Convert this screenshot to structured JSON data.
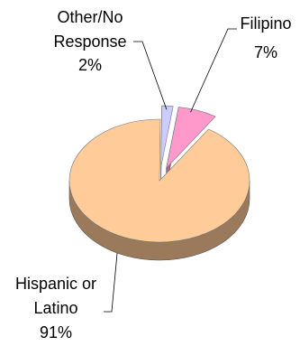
{
  "chart_data": {
    "type": "pie",
    "title": "",
    "slices": [
      {
        "label": "Hispanic or Latino",
        "value": 91,
        "percent_label": "91%",
        "color": "#ffcc99",
        "side_color": "#9b7a5c",
        "exploded": false
      },
      {
        "label": "Other/No Response",
        "value": 2,
        "percent_label": "2%",
        "color": "#ccccff",
        "side_color": "#8585c2",
        "exploded": true
      },
      {
        "label": "Filipino",
        "value": 7,
        "percent_label": "7%",
        "color": "#ff99cc",
        "side_color": "#b3668c",
        "exploded": true
      }
    ],
    "labels": {
      "hispanic_line1": "Hispanic or",
      "hispanic_line2": "Latino",
      "hispanic_pct": "91%",
      "other_line1": "Other/No",
      "other_line2": "Response",
      "other_pct": "2%",
      "filipino_line1": "Filipino",
      "filipino_pct": "7%"
    },
    "legend": "none",
    "style": "3d-exploded"
  }
}
